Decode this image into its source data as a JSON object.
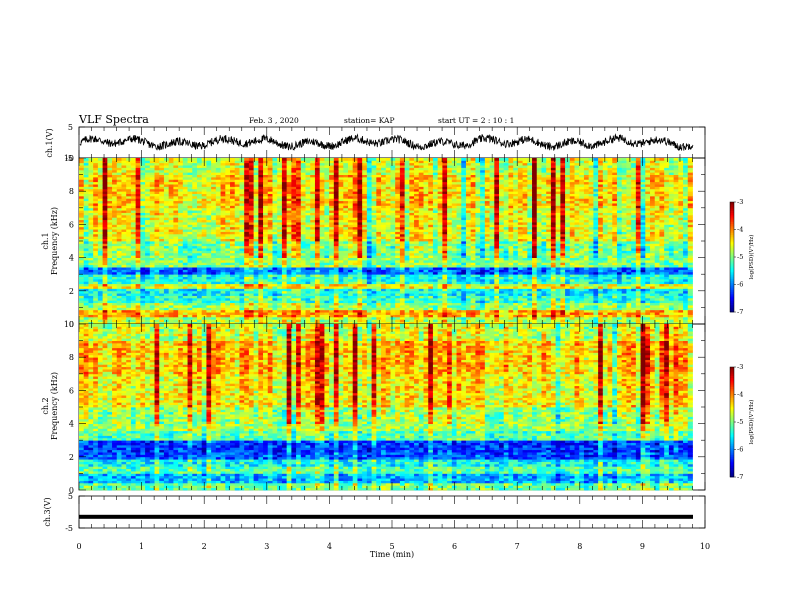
{
  "header": {
    "title": "VLF Spectra",
    "date": "Feb. 3 , 2020",
    "station": "station= KAP",
    "start": "start UT = 2 : 10 : 1"
  },
  "chart_data": [
    {
      "type": "line",
      "panel": "ch1-waveform",
      "ylabel": "ch.1(V)",
      "ylim": [
        -5,
        5
      ],
      "yticks": [
        "5",
        "-5"
      ],
      "xlim": [
        0,
        10
      ],
      "trace_color": "#000000",
      "trace_level": [
        0,
        0.8
      ],
      "trace_amplitude": 2.6
    },
    {
      "type": "heatmap",
      "panel": "ch1-spectrogram",
      "ylabel": "ch.1\nFrequency (kHz)",
      "ylim": [
        0,
        10
      ],
      "yticks": [
        "0",
        "2",
        "4",
        "6",
        "8",
        "10"
      ],
      "xlim": [
        0,
        9.8
      ],
      "colorbar": {
        "label": "log(PSD)(V²/Hz)",
        "range": [
          -7,
          -3
        ],
        "ticks": [
          "-3",
          "-4",
          "-5",
          "-6",
          "-7"
        ]
      },
      "bands": [
        {
          "from": 0.0,
          "to": 0.4,
          "level": -4.8
        },
        {
          "from": 0.4,
          "to": 0.9,
          "level": -4.2
        },
        {
          "from": 0.9,
          "to": 1.3,
          "level": -4.9
        },
        {
          "from": 1.3,
          "to": 1.7,
          "level": -5.3
        },
        {
          "from": 1.7,
          "to": 2.1,
          "level": -5.5
        },
        {
          "from": 2.1,
          "to": 2.4,
          "level": -4.6
        },
        {
          "from": 2.4,
          "to": 3.0,
          "level": -5.4
        },
        {
          "from": 3.0,
          "to": 3.4,
          "level": -6.1
        },
        {
          "from": 3.4,
          "to": 3.8,
          "level": -5.0
        },
        {
          "from": 3.8,
          "to": 5.0,
          "level": -5.0
        },
        {
          "from": 5.0,
          "to": 7.0,
          "level": -4.6
        },
        {
          "from": 7.0,
          "to": 9.0,
          "level": -4.4
        },
        {
          "from": 9.0,
          "to": 10.0,
          "level": -4.7
        }
      ]
    },
    {
      "type": "heatmap",
      "panel": "ch2-spectrogram",
      "ylabel": "ch.2\nFrequency (kHz)",
      "ylim": [
        0,
        10
      ],
      "yticks": [
        "0",
        "2",
        "4",
        "6",
        "8",
        "10"
      ],
      "xlim": [
        0,
        9.8
      ],
      "colorbar": {
        "label": "log(PSD)(V²/Hz)",
        "range": [
          -7,
          -3
        ],
        "ticks": [
          "-3",
          "-4",
          "-5",
          "-6",
          "-7"
        ]
      },
      "bands": [
        {
          "from": 0.0,
          "to": 0.5,
          "level": -5.1
        },
        {
          "from": 0.5,
          "to": 1.0,
          "level": -5.8
        },
        {
          "from": 1.0,
          "to": 1.5,
          "level": -5.2
        },
        {
          "from": 1.5,
          "to": 1.9,
          "level": -5.5
        },
        {
          "from": 1.9,
          "to": 2.3,
          "level": -6.2
        },
        {
          "from": 2.3,
          "to": 3.0,
          "level": -6.3
        },
        {
          "from": 3.0,
          "to": 3.6,
          "level": -5.2
        },
        {
          "from": 3.6,
          "to": 5.0,
          "level": -4.9
        },
        {
          "from": 5.0,
          "to": 7.0,
          "level": -4.5
        },
        {
          "from": 7.0,
          "to": 9.0,
          "level": -4.3
        },
        {
          "from": 9.0,
          "to": 10.0,
          "level": -4.7
        }
      ]
    },
    {
      "type": "line",
      "panel": "ch3-waveform",
      "ylabel": "ch.3(V)",
      "ylim": [
        -5,
        5
      ],
      "yticks": [
        "5",
        "-5"
      ],
      "xlim": [
        0,
        10
      ],
      "trace_color": "#000000",
      "trace_level": -1.5,
      "xlabel": "Time (min)",
      "xticks": [
        "0",
        "1",
        "2",
        "3",
        "4",
        "5",
        "6",
        "7",
        "8",
        "9",
        "10"
      ]
    }
  ]
}
